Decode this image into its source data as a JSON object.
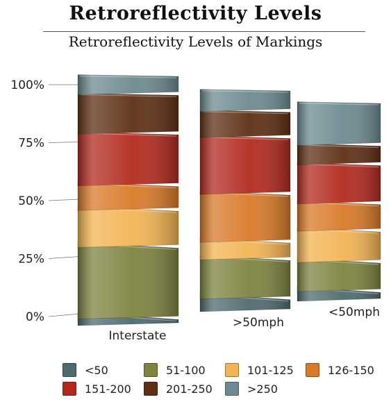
{
  "title": "Retroreflectivity Levels",
  "subtitle": "Retroreflectivity Levels of Markings",
  "chart_data": {
    "type": "bar",
    "stacked": true,
    "orientation": "vertical",
    "title": "Retroreflectivity Levels",
    "subtitle": "Retroreflectivity Levels of Markings",
    "categories": [
      "Interstate",
      ">50mph",
      "<50mph"
    ],
    "y_ticks": [
      "0%",
      "25%",
      "50%",
      "75%",
      "100%"
    ],
    "ylim": [
      0,
      100
    ],
    "series": [
      {
        "name": "<50",
        "color": "#4f6a6f",
        "values": [
          2,
          5,
          4
        ]
      },
      {
        "name": "51-100",
        "color": "#7d8440",
        "values": [
          29,
          18,
          15
        ]
      },
      {
        "name": "101-125",
        "color": "#f3b454",
        "values": [
          15,
          8,
          16
        ]
      },
      {
        "name": "126-150",
        "color": "#d97a29",
        "values": [
          10,
          22,
          14
        ]
      },
      {
        "name": "151-200",
        "color": "#b22a1e",
        "values": [
          21,
          26,
          20
        ]
      },
      {
        "name": "201-250",
        "color": "#5e2f14",
        "values": [
          16,
          12,
          10
        ]
      },
      {
        "name": ">250",
        "color": "#6d8a90",
        "values": [
          7,
          9,
          21
        ]
      }
    ],
    "legend_position": "bottom",
    "grid": false
  }
}
